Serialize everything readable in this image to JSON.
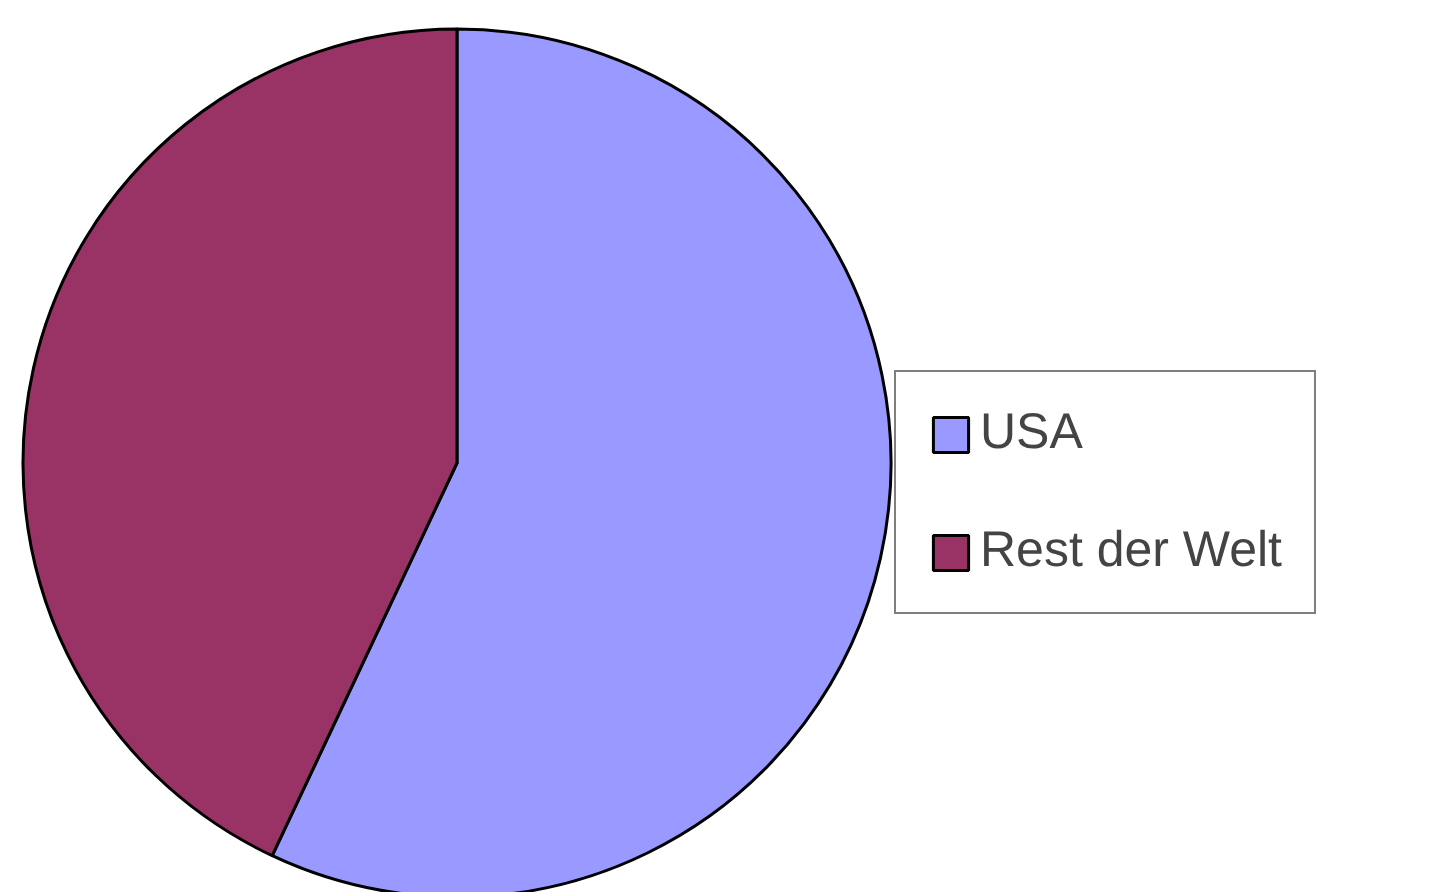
{
  "chart_data": {
    "type": "pie",
    "categories": [
      "USA",
      "Rest der Welt"
    ],
    "values": [
      57,
      43
    ],
    "colors": [
      "#9999ff",
      "#993366"
    ],
    "legend": "right"
  }
}
